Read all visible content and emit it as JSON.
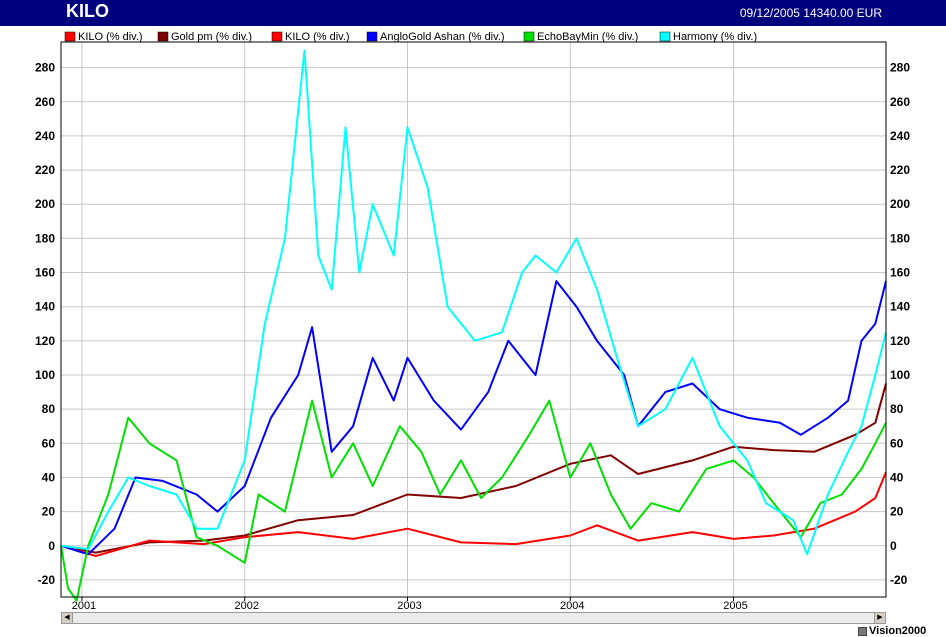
{
  "window": {
    "title": "KILO",
    "quote": "09/12/2005 14340.00 EUR",
    "brand": "Vision2000",
    "brand_icon": "vision-logo-icon"
  },
  "chart_data": {
    "type": "line",
    "x_range": [
      "2000-11-15",
      "2005-12-09"
    ],
    "ylim": [
      -30,
      295
    ],
    "y_ticks": [
      -20,
      0,
      20,
      40,
      60,
      80,
      100,
      120,
      140,
      160,
      180,
      200,
      220,
      240,
      260,
      280
    ],
    "x_tick_labels": [
      {
        "label": "2001",
        "date": "2001-01-01"
      },
      {
        "label": "2002",
        "date": "2002-01-01"
      },
      {
        "label": "2003",
        "date": "2003-01-01"
      },
      {
        "label": "2004",
        "date": "2004-01-01"
      },
      {
        "label": "2005",
        "date": "2005-01-01"
      }
    ],
    "grid": true,
    "legend_position": "top",
    "series": [
      {
        "name": "KILO (% div.)",
        "color": "#ff0000",
        "legend_only": true,
        "points": []
      },
      {
        "name": "Gold pm (% div.)",
        "color": "#800000",
        "points": [
          [
            "2000-11-15",
            0
          ],
          [
            "2001-02-01",
            -4
          ],
          [
            "2001-06-01",
            2
          ],
          [
            "2001-10-01",
            3
          ],
          [
            "2002-01-01",
            6
          ],
          [
            "2002-05-01",
            15
          ],
          [
            "2002-09-01",
            18
          ],
          [
            "2003-01-01",
            30
          ],
          [
            "2003-05-01",
            28
          ],
          [
            "2003-09-01",
            35
          ],
          [
            "2004-01-01",
            48
          ],
          [
            "2004-04-01",
            53
          ],
          [
            "2004-06-01",
            42
          ],
          [
            "2004-10-01",
            50
          ],
          [
            "2005-01-01",
            58
          ],
          [
            "2005-04-01",
            56
          ],
          [
            "2005-07-01",
            55
          ],
          [
            "2005-10-01",
            65
          ],
          [
            "2005-11-15",
            72
          ],
          [
            "2005-12-09",
            95
          ]
        ]
      },
      {
        "name": "KILO (% div.)",
        "color": "#ff0000",
        "points": [
          [
            "2000-11-15",
            0
          ],
          [
            "2001-02-01",
            -6
          ],
          [
            "2001-06-01",
            3
          ],
          [
            "2001-10-01",
            1
          ],
          [
            "2002-01-01",
            5
          ],
          [
            "2002-05-01",
            8
          ],
          [
            "2002-09-01",
            4
          ],
          [
            "2003-01-01",
            10
          ],
          [
            "2003-05-01",
            2
          ],
          [
            "2003-09-01",
            1
          ],
          [
            "2004-01-01",
            6
          ],
          [
            "2004-03-01",
            12
          ],
          [
            "2004-06-01",
            3
          ],
          [
            "2004-10-01",
            8
          ],
          [
            "2005-01-01",
            4
          ],
          [
            "2005-04-01",
            6
          ],
          [
            "2005-07-01",
            10
          ],
          [
            "2005-10-01",
            20
          ],
          [
            "2005-11-15",
            28
          ],
          [
            "2005-12-09",
            43
          ]
        ]
      },
      {
        "name": "AngloGold Ashan (% div.)",
        "color": "#0000ff",
        "points": [
          [
            "2000-11-15",
            0
          ],
          [
            "2001-01-15",
            -5
          ],
          [
            "2001-03-15",
            10
          ],
          [
            "2001-05-01",
            40
          ],
          [
            "2001-07-01",
            38
          ],
          [
            "2001-09-15",
            30
          ],
          [
            "2001-11-01",
            20
          ],
          [
            "2002-01-01",
            35
          ],
          [
            "2002-03-01",
            75
          ],
          [
            "2002-05-01",
            100
          ],
          [
            "2002-06-01",
            128
          ],
          [
            "2002-07-15",
            55
          ],
          [
            "2002-09-01",
            70
          ],
          [
            "2002-10-15",
            110
          ],
          [
            "2002-12-01",
            85
          ],
          [
            "2003-01-01",
            110
          ],
          [
            "2003-03-01",
            85
          ],
          [
            "2003-05-01",
            68
          ],
          [
            "2003-07-01",
            90
          ],
          [
            "2003-08-15",
            120
          ],
          [
            "2003-10-15",
            100
          ],
          [
            "2003-12-01",
            155
          ],
          [
            "2004-01-15",
            140
          ],
          [
            "2004-03-01",
            120
          ],
          [
            "2004-05-01",
            100
          ],
          [
            "2004-06-01",
            70
          ],
          [
            "2004-08-01",
            90
          ],
          [
            "2004-10-01",
            95
          ],
          [
            "2004-12-01",
            80
          ],
          [
            "2005-02-01",
            75
          ],
          [
            "2005-04-15",
            72
          ],
          [
            "2005-06-01",
            65
          ],
          [
            "2005-08-01",
            75
          ],
          [
            "2005-09-15",
            85
          ],
          [
            "2005-10-15",
            120
          ],
          [
            "2005-11-15",
            130
          ],
          [
            "2005-12-09",
            155
          ]
        ]
      },
      {
        "name": "EchoBayMin (% div.)",
        "color": "#00e000",
        "points": [
          [
            "2000-11-15",
            0
          ],
          [
            "2000-12-01",
            -25
          ],
          [
            "2000-12-20",
            -32
          ],
          [
            "2001-01-15",
            0
          ],
          [
            "2001-03-01",
            30
          ],
          [
            "2001-04-15",
            75
          ],
          [
            "2001-06-01",
            60
          ],
          [
            "2001-08-01",
            50
          ],
          [
            "2001-09-15",
            5
          ],
          [
            "2001-11-01",
            0
          ],
          [
            "2002-01-01",
            -10
          ],
          [
            "2002-02-01",
            30
          ],
          [
            "2002-04-01",
            20
          ],
          [
            "2002-06-01",
            85
          ],
          [
            "2002-07-15",
            40
          ],
          [
            "2002-09-01",
            60
          ],
          [
            "2002-10-15",
            35
          ],
          [
            "2002-12-15",
            70
          ],
          [
            "2003-02-01",
            55
          ],
          [
            "2003-03-15",
            30
          ],
          [
            "2003-05-01",
            50
          ],
          [
            "2003-06-15",
            28
          ],
          [
            "2003-08-01",
            40
          ],
          [
            "2003-10-01",
            65
          ],
          [
            "2003-11-15",
            85
          ],
          [
            "2004-01-01",
            40
          ],
          [
            "2004-02-15",
            60
          ],
          [
            "2004-04-01",
            30
          ],
          [
            "2004-05-15",
            10
          ],
          [
            "2004-07-01",
            25
          ],
          [
            "2004-09-01",
            20
          ],
          [
            "2004-11-01",
            45
          ],
          [
            "2005-01-01",
            50
          ],
          [
            "2005-02-15",
            40
          ],
          [
            "2005-04-01",
            25
          ],
          [
            "2005-06-01",
            5
          ],
          [
            "2005-07-15",
            25
          ],
          [
            "2005-09-01",
            30
          ],
          [
            "2005-10-15",
            45
          ],
          [
            "2005-11-15",
            60
          ],
          [
            "2005-12-09",
            72
          ]
        ]
      },
      {
        "name": "Harmony (% div.)",
        "color": "#00ffff",
        "points": [
          [
            "2000-11-15",
            0
          ],
          [
            "2001-01-15",
            -2
          ],
          [
            "2001-03-01",
            20
          ],
          [
            "2001-04-15",
            40
          ],
          [
            "2001-06-01",
            35
          ],
          [
            "2001-08-01",
            30
          ],
          [
            "2001-09-15",
            10
          ],
          [
            "2001-11-01",
            10
          ],
          [
            "2002-01-01",
            50
          ],
          [
            "2002-02-15",
            130
          ],
          [
            "2002-04-01",
            180
          ],
          [
            "2002-05-15",
            290
          ],
          [
            "2002-06-15",
            170
          ],
          [
            "2002-07-15",
            150
          ],
          [
            "2002-08-15",
            245
          ],
          [
            "2002-09-15",
            160
          ],
          [
            "2002-10-15",
            200
          ],
          [
            "2002-12-01",
            170
          ],
          [
            "2003-01-01",
            245
          ],
          [
            "2003-02-15",
            210
          ],
          [
            "2003-04-01",
            140
          ],
          [
            "2003-06-01",
            120
          ],
          [
            "2003-08-01",
            125
          ],
          [
            "2003-09-15",
            160
          ],
          [
            "2003-10-15",
            170
          ],
          [
            "2003-12-01",
            160
          ],
          [
            "2004-01-15",
            180
          ],
          [
            "2004-03-01",
            150
          ],
          [
            "2004-04-15",
            110
          ],
          [
            "2004-06-01",
            70
          ],
          [
            "2004-08-01",
            80
          ],
          [
            "2004-10-01",
            110
          ],
          [
            "2004-12-01",
            70
          ],
          [
            "2005-02-01",
            50
          ],
          [
            "2005-03-15",
            25
          ],
          [
            "2005-05-15",
            15
          ],
          [
            "2005-06-15",
            -5
          ],
          [
            "2005-08-01",
            30
          ],
          [
            "2005-09-15",
            55
          ],
          [
            "2005-10-15",
            70
          ],
          [
            "2005-11-15",
            100
          ],
          [
            "2005-12-09",
            125
          ]
        ]
      }
    ]
  }
}
